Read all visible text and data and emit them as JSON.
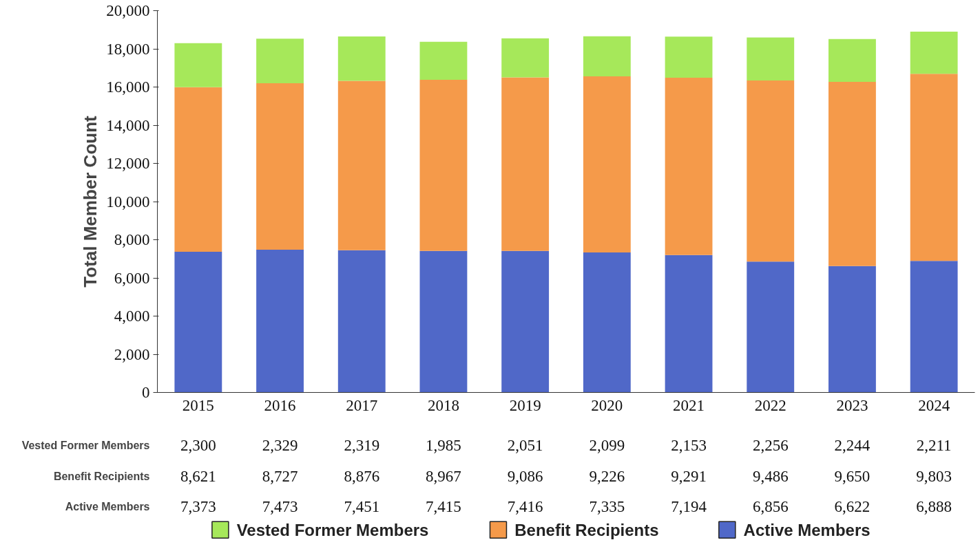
{
  "chart_data": {
    "type": "bar",
    "stacked": true,
    "ylabel": "Total Member Count",
    "categories": [
      "2015",
      "2016",
      "2017",
      "2018",
      "2019",
      "2020",
      "2021",
      "2022",
      "2023",
      "2024"
    ],
    "series": [
      {
        "name": "Active Members",
        "color": "#5068c8",
        "values": [
          7373,
          7473,
          7451,
          7415,
          7416,
          7335,
          7194,
          6856,
          6622,
          6888
        ],
        "value_labels": [
          "7,373",
          "7,473",
          "7,451",
          "7,415",
          "7,416",
          "7,335",
          "7,194",
          "6,856",
          "6,622",
          "6,888"
        ]
      },
      {
        "name": "Benefit Recipients",
        "color": "#f59a4a",
        "values": [
          8621,
          8727,
          8876,
          8967,
          9086,
          9226,
          9291,
          9486,
          9650,
          9803
        ],
        "value_labels": [
          "8,621",
          "8,727",
          "8,876",
          "8,967",
          "9,086",
          "9,226",
          "9,291",
          "9,486",
          "9,650",
          "9,803"
        ]
      },
      {
        "name": "Vested Former Members",
        "color": "#a6e85a",
        "values": [
          2300,
          2329,
          2319,
          1985,
          2051,
          2099,
          2153,
          2256,
          2244,
          2211
        ],
        "value_labels": [
          "2,300",
          "2,329",
          "2,319",
          "1,985",
          "2,051",
          "2,099",
          "2,153",
          "2,256",
          "2,244",
          "2,211"
        ]
      }
    ],
    "ylim": [
      0,
      20000
    ],
    "yticks": [
      0,
      {
        "value": 2000,
        "label": "2,000"
      },
      {
        "value": 4000,
        "label": "4,000"
      },
      {
        "value": 6000,
        "label": "6,000"
      },
      {
        "value": 8000,
        "label": "8,000"
      },
      {
        "value": 10000,
        "label": "10,000"
      },
      {
        "value": 12000,
        "label": "12,000"
      },
      {
        "value": 14000,
        "label": "14,000"
      },
      {
        "value": 16000,
        "label": "16,000"
      },
      {
        "value": 18000,
        "label": "18,000"
      },
      {
        "value": 20000,
        "label": "20,000"
      }
    ],
    "grid": false,
    "legend": "bottom"
  }
}
